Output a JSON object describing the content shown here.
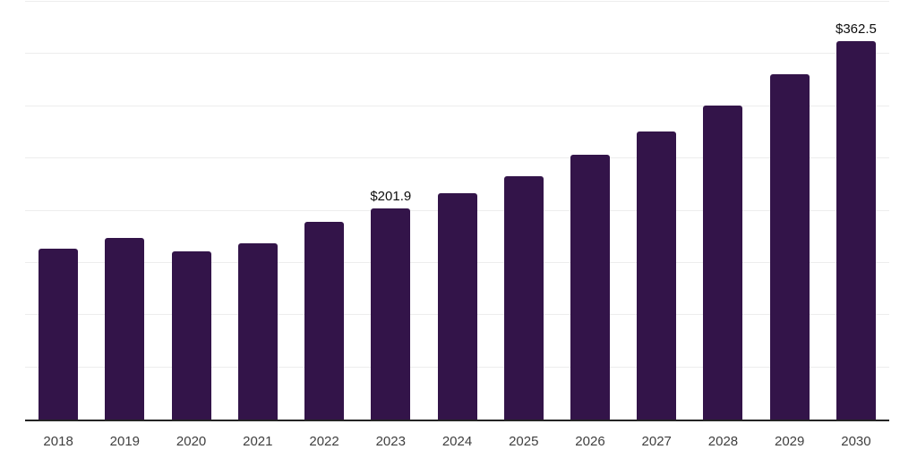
{
  "chart_data": {
    "type": "bar",
    "title": "",
    "xlabel": "",
    "ylabel": "",
    "categories": [
      "2018",
      "2019",
      "2020",
      "2021",
      "2022",
      "2023",
      "2024",
      "2025",
      "2026",
      "2027",
      "2028",
      "2029",
      "2030"
    ],
    "values": [
      164.0,
      174.3,
      161.4,
      169.1,
      188.9,
      201.9,
      216.5,
      233.4,
      253.3,
      275.6,
      300.5,
      330.5,
      362.5
    ],
    "bar_labels": [
      null,
      null,
      null,
      null,
      null,
      "$201.9",
      null,
      null,
      null,
      null,
      null,
      null,
      "$362.5"
    ],
    "ylim": [
      0,
      400
    ],
    "gridline_step": 50,
    "grid": true,
    "legend": "none",
    "y_tick_labels_visible": false,
    "colors": {
      "bar": "#331449",
      "gridline": "#ededed",
      "axis_line": "#242424",
      "bar_label_text": "#0d0d0d",
      "tick_label_text": "#3f3f3f",
      "background": "#ffffff"
    }
  }
}
